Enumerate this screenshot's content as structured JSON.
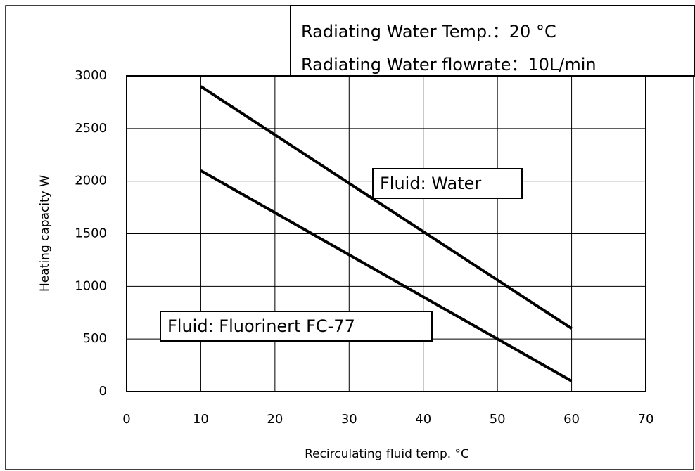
{
  "chart_data": {
    "type": "line",
    "notes": [
      "Radiating Water Temp.：20 °C",
      "Radiating Water flowrate：10L/min"
    ],
    "x_label": "Recirculating fluid temp.  °C",
    "y_label": "Heating capacity  W",
    "x": [
      10,
      60
    ],
    "series": [
      {
        "name": "Fluid: Water",
        "color": "#000000",
        "values": [
          2900,
          600
        ]
      },
      {
        "name": "Fluid: Fluorinert FC-77",
        "color": "#000000",
        "values": [
          2100,
          100
        ]
      }
    ],
    "xlim": [
      0,
      70
    ],
    "xticks": [
      0,
      10,
      20,
      30,
      40,
      50,
      60,
      70
    ],
    "ylim": [
      0,
      3000
    ],
    "yticks": [
      0,
      500,
      1000,
      1500,
      2000,
      2500,
      3000
    ],
    "grid": true
  }
}
